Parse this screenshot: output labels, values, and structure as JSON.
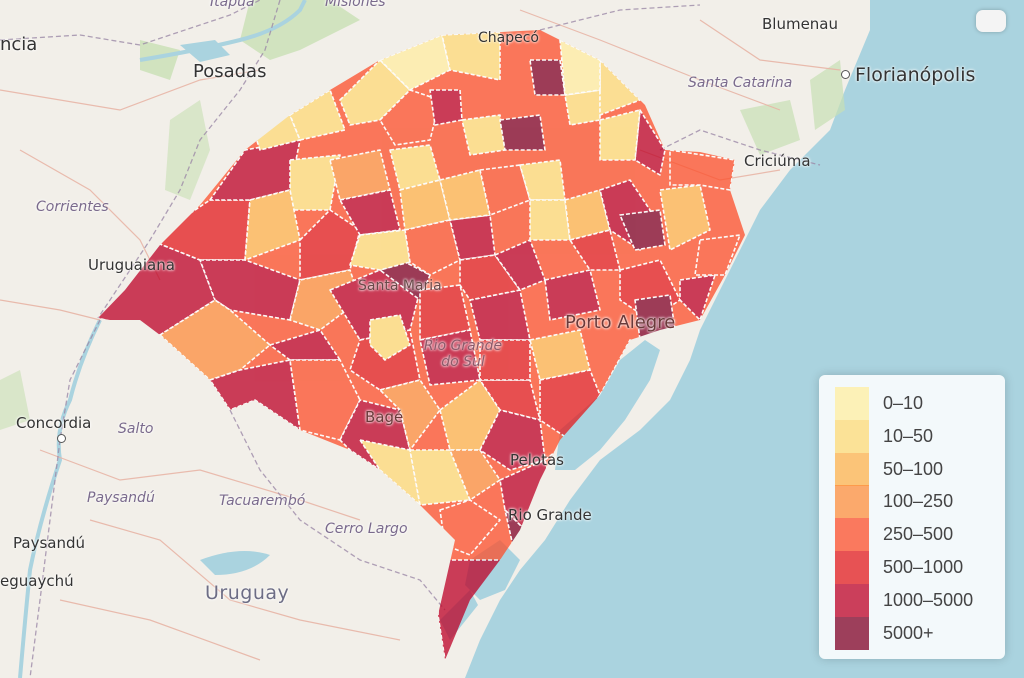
{
  "map": {
    "labels": {
      "itapua": "Itapúa",
      "misiones": "Misiones",
      "encarnacion_partial": "ncia",
      "posadas": "Posadas",
      "corrientes": "Corrientes",
      "uruguaiana": "Uruguaiana",
      "concordia": "Concordia",
      "salto": "Salto",
      "paysandu_dept": "Paysandú",
      "tacuarembo": "Tacuarembó",
      "paysandu_city": "Paysandú",
      "gualeguaychu_partial": "eguaychú",
      "uruguay": "Uruguay",
      "cerro_largo": "Cerro Largo",
      "blumenau": "Blumenau",
      "florianopolis": "Florianópolis",
      "santa_catarina": "Santa Catarina",
      "criciuma": "Criciúma",
      "santa_maria": "Santa Maria",
      "rio_grande_do_sul": "Rio Grande do Sul",
      "porto_alegre": "Porto Alegre",
      "bage": "Bagé",
      "pelotas": "Pelotas",
      "rio_grande": "Rio Grande",
      "chapeco_partial": "Chapecó"
    }
  },
  "legend": {
    "items": [
      {
        "label": "0–10",
        "color": "#ffeda0"
      },
      {
        "label": "10–50",
        "color": "#fed976"
      },
      {
        "label": "50–100",
        "color": "#feb24c"
      },
      {
        "label": "100–250",
        "color": "#fd8d3c"
      },
      {
        "label": "250–500",
        "color": "#fc4e2a"
      },
      {
        "label": "500–1000",
        "color": "#e31a1c"
      },
      {
        "label": "1000–5000",
        "color": "#bd0026"
      },
      {
        "label": "5000+",
        "color": "#800026"
      }
    ]
  }
}
